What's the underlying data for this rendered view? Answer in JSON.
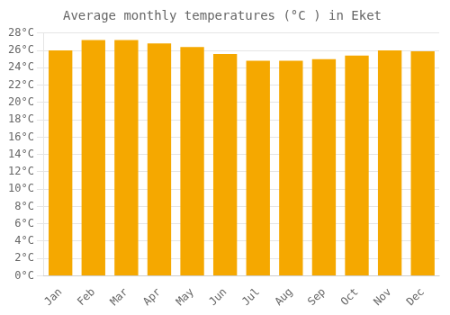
{
  "chart_data": {
    "type": "bar",
    "title": "Average monthly temperatures (°C ) in Eket",
    "categories": [
      "Jan",
      "Feb",
      "Mar",
      "Apr",
      "May",
      "Jun",
      "Jul",
      "Aug",
      "Sep",
      "Oct",
      "Nov",
      "Dec"
    ],
    "values": [
      26.0,
      27.2,
      27.2,
      26.8,
      26.4,
      25.6,
      24.8,
      24.8,
      25.0,
      25.4,
      26.0,
      25.9
    ],
    "color": "#F5A800",
    "ylim": [
      0,
      28
    ],
    "yticks": [
      {
        "value": 0,
        "label": "0°C"
      },
      {
        "value": 2,
        "label": "2°C"
      },
      {
        "value": 4,
        "label": "4°C"
      },
      {
        "value": 6,
        "label": "6°C"
      },
      {
        "value": 8,
        "label": "8°C"
      },
      {
        "value": 10,
        "label": "10°C"
      },
      {
        "value": 12,
        "label": "12°C"
      },
      {
        "value": 14,
        "label": "14°C"
      },
      {
        "value": 16,
        "label": "16°C"
      },
      {
        "value": 18,
        "label": "18°C"
      },
      {
        "value": 20,
        "label": "20°C"
      },
      {
        "value": 22,
        "label": "22°C"
      },
      {
        "value": 24,
        "label": "24°C"
      },
      {
        "value": 26,
        "label": "26°C"
      },
      {
        "value": 28,
        "label": "28°C"
      }
    ],
    "grid": true
  }
}
